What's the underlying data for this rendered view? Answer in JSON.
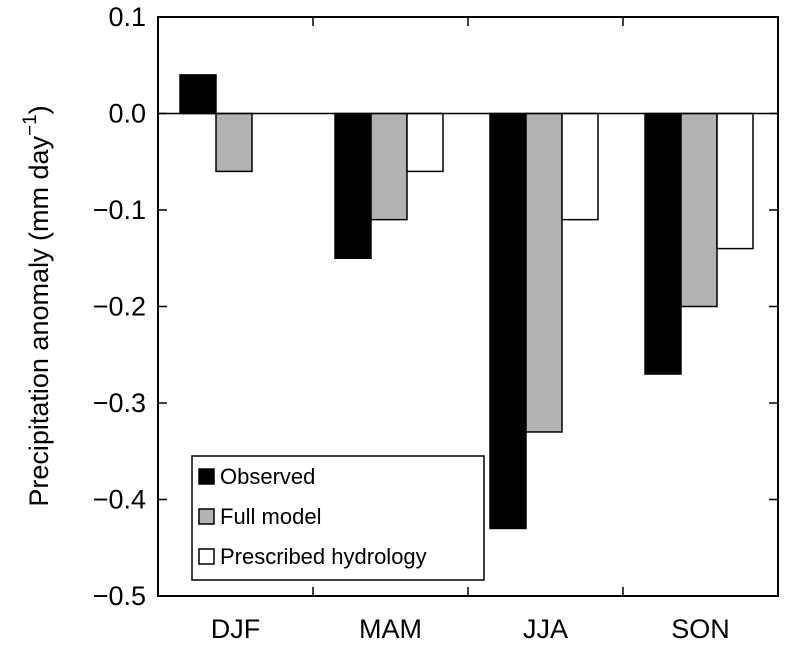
{
  "chart_data": {
    "type": "bar",
    "title": "",
    "xlabel": "",
    "ylabel": "Precipitation anomaly (mm day",
    "ylabel_sup": "−1",
    "ylabel_close": ")",
    "categories": [
      "DJF",
      "MAM",
      "JJA",
      "SON"
    ],
    "series": [
      {
        "name": "Observed",
        "values": [
          0.04,
          -0.15,
          -0.43,
          -0.27
        ],
        "color": "#000000"
      },
      {
        "name": "Full model",
        "values": [
          -0.06,
          -0.11,
          -0.33,
          -0.2
        ],
        "color": "#b3b3b3"
      },
      {
        "name": "Prescribed hydrology",
        "values": [
          null,
          -0.06,
          -0.11,
          -0.14
        ],
        "color": "#ffffff"
      }
    ],
    "ylim": [
      -0.5,
      0.1
    ],
    "yticks": [
      0.1,
      0.0,
      -0.1,
      -0.2,
      -0.3,
      -0.4,
      -0.5
    ],
    "ytick_labels": [
      "0.1",
      "0.0",
      "−0.1",
      "−0.2",
      "−0.3",
      "−0.4",
      "−0.5"
    ],
    "zero_line": true,
    "grid": false,
    "legend_position": "bottom-left"
  }
}
